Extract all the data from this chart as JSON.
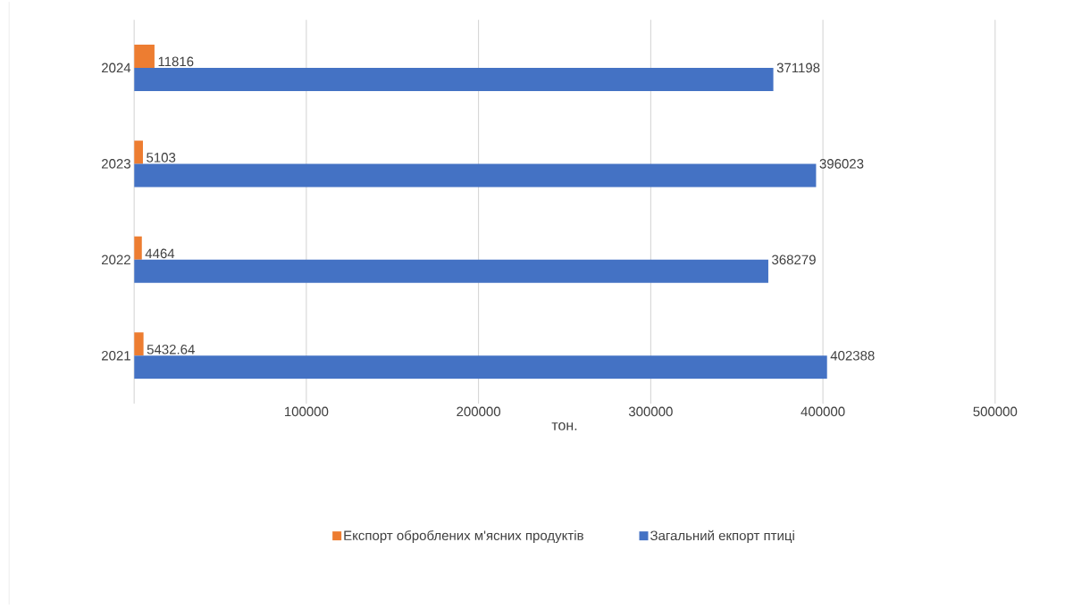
{
  "chart_data": {
    "type": "bar",
    "orientation": "horizontal",
    "xlabel": "тон.",
    "categories": [
      "2024",
      "2023",
      "2022",
      "2021"
    ],
    "series": [
      {
        "name": "Експорт оброблених м'ясних продуктів",
        "color": "#ed7d31",
        "values": [
          11816,
          5103,
          4464,
          5432.64
        ]
      },
      {
        "name": "Загальний екпорт птиці",
        "color": "#4472c4",
        "values": [
          371198,
          396023,
          368279,
          402388
        ]
      }
    ],
    "data_labels": true,
    "xlim": [
      0,
      500000
    ],
    "xticks": [
      {
        "value": 0,
        "label": null
      },
      100000,
      200000,
      300000,
      400000,
      500000
    ],
    "grid": "x",
    "legend": "bottom"
  }
}
